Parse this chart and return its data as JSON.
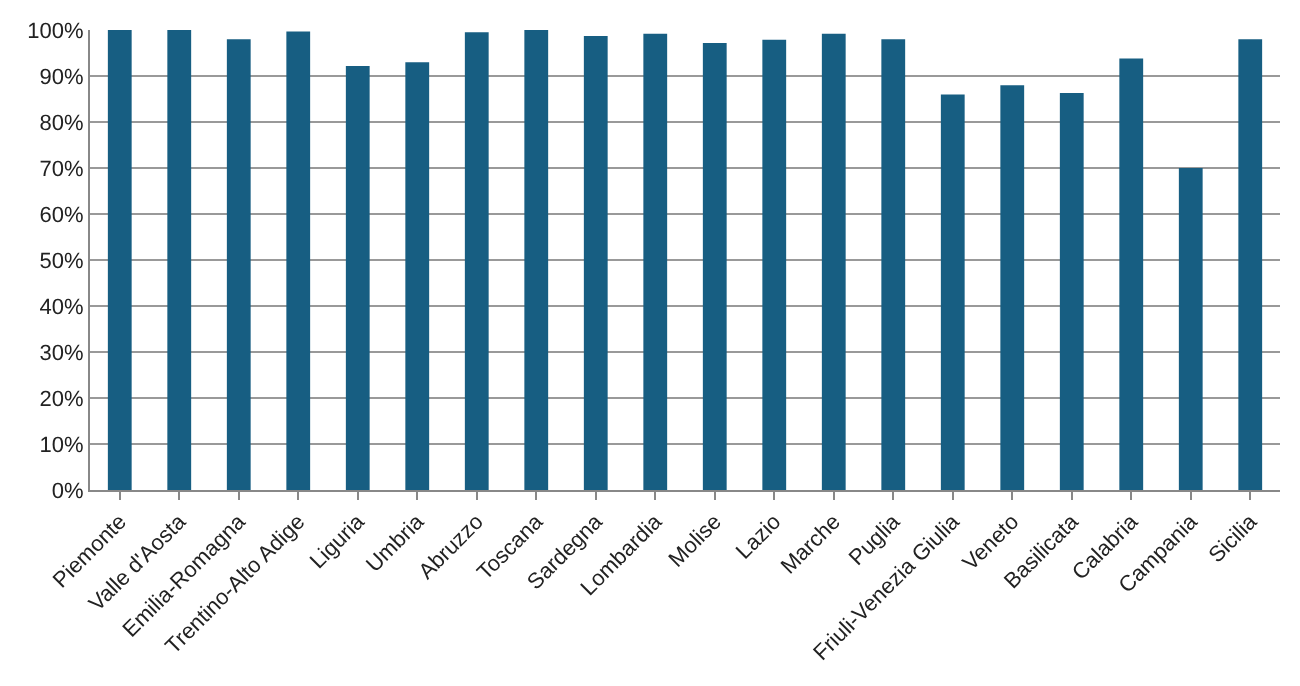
{
  "chart_data": {
    "type": "bar",
    "categories": [
      "Piemonte",
      "Valle d'Aosta",
      "Emilia-Romagna",
      "Trentino-Alto Adige",
      "Liguria",
      "Umbria",
      "Abruzzo",
      "Toscana",
      "Sardegna",
      "Lombardia",
      "Molise",
      "Lazio",
      "Marche",
      "Puglia",
      "Friuli-Venezia Giulia",
      "Veneto",
      "Basilicata",
      "Calabria",
      "Campania",
      "Sicilia"
    ],
    "values": [
      100,
      100,
      98,
      99.7,
      92.2,
      93,
      99.5,
      100,
      98.7,
      99.2,
      97.2,
      97.9,
      99.2,
      98,
      86,
      88,
      86.3,
      93.8,
      70,
      98
    ],
    "color": "#175e82",
    "ylim": [
      0,
      100
    ],
    "yticks": [
      {
        "value": 0,
        "label": "0%"
      },
      {
        "value": 10,
        "label": "10%"
      },
      {
        "value": 20,
        "label": "20%"
      },
      {
        "value": 30,
        "label": "30%"
      },
      {
        "value": 40,
        "label": "40%"
      },
      {
        "value": 50,
        "label": "50%"
      },
      {
        "value": 60,
        "label": "60%"
      },
      {
        "value": 70,
        "label": "70%"
      },
      {
        "value": 80,
        "label": "80%"
      },
      {
        "value": 90,
        "label": "90%"
      },
      {
        "value": 100,
        "label": "100%"
      }
    ],
    "grid": "y"
  }
}
